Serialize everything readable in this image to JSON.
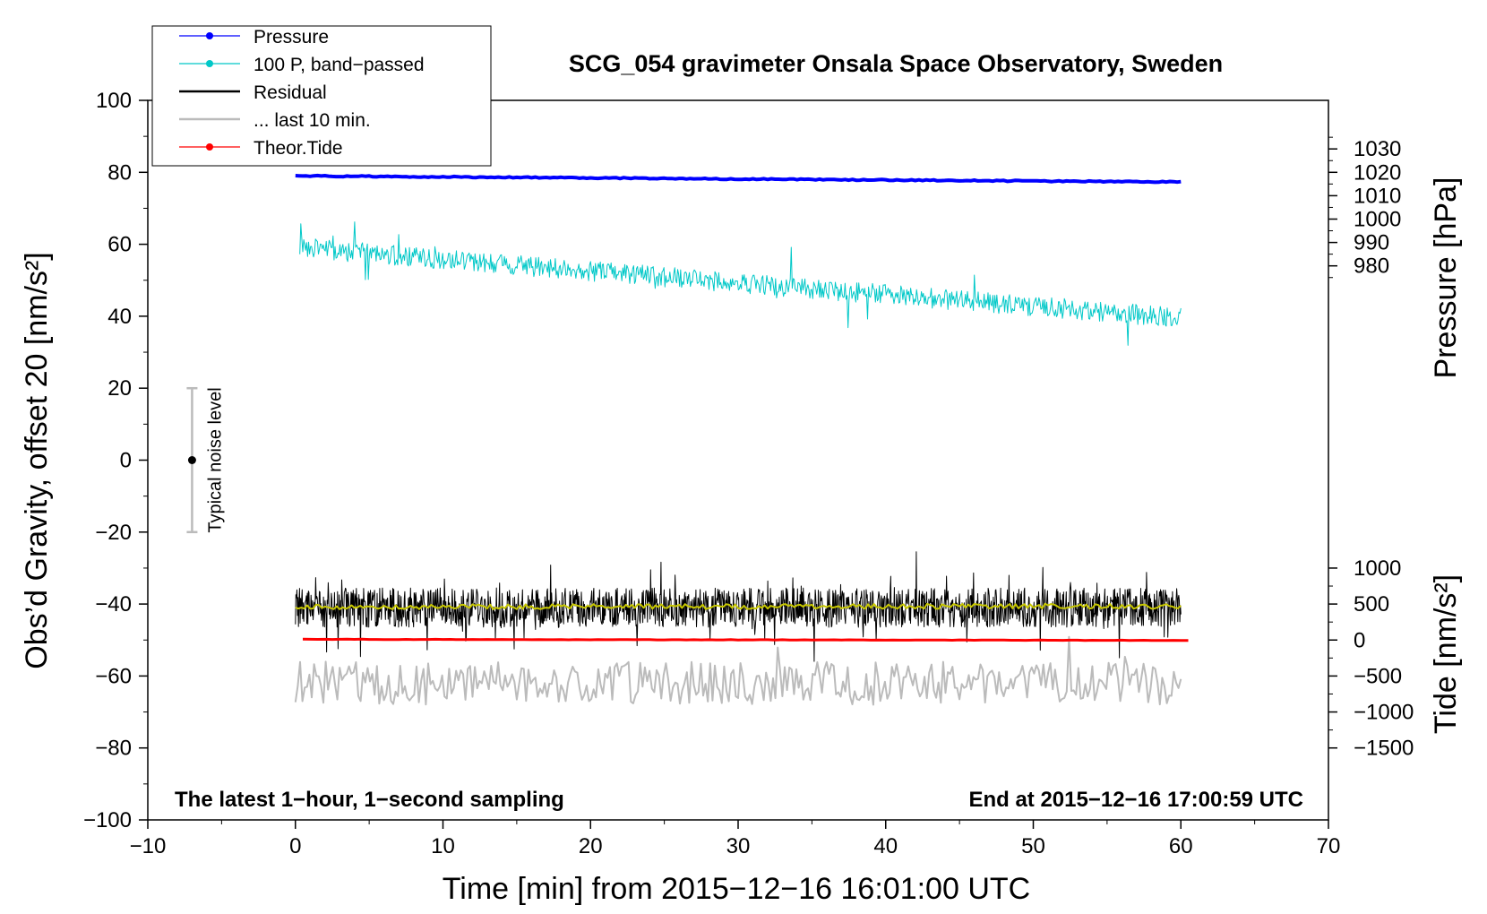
{
  "chart_data": {
    "type": "line",
    "title": "SCG_054 gravimeter Onsala Space Observatory, Sweden",
    "xlabel": "Time [min] from 2015−12−16 16:01:00 UTC",
    "ylabel": "Obs’d Gravity, offset 20 [nm/s²]",
    "right_top_label": "Pressure [hPa]",
    "right_bottom_label": "Tide [nm/s²]",
    "xlim": [
      -10,
      70
    ],
    "ylim": [
      -100,
      100
    ],
    "x_ticks": [
      "−10",
      "0",
      "10",
      "20",
      "30",
      "40",
      "50",
      "60",
      "70"
    ],
    "x_tick_values": [
      -10,
      0,
      10,
      20,
      30,
      40,
      50,
      60,
      70
    ],
    "y_ticks": [
      "100",
      "80",
      "60",
      "40",
      "20",
      "0",
      "−20",
      "−40",
      "−60",
      "−80",
      "−100"
    ],
    "y_tick_values": [
      100,
      80,
      60,
      40,
      20,
      0,
      -20,
      -40,
      -60,
      -80,
      -100
    ],
    "pressure_axis": {
      "ticks": [
        "1030",
        "1020",
        "1010",
        "1000",
        "990",
        "980"
      ],
      "tick_values": [
        1030,
        1020,
        1010,
        1000,
        990,
        980
      ],
      "left_value_at_1020": 80,
      "left_units_per_hPa": 0.65
    },
    "tide_axis": {
      "ticks": [
        "1000",
        "500",
        "0",
        "−500",
        "−1000",
        "−1500"
      ],
      "tick_values": [
        1000,
        500,
        0,
        -500,
        -1000,
        -1500
      ],
      "left_value_at_0": -50,
      "left_units_per_nm": 0.02
    },
    "noise_bar": {
      "label": "Typical noise level",
      "x": -7,
      "center": 0,
      "low": -20,
      "high": 20
    },
    "legend": [
      {
        "label": "Pressure",
        "color": "#0000ff",
        "marker": true
      },
      {
        "label": "100 P, band−passed",
        "color": "#00c8c8",
        "marker": true
      },
      {
        "label": "Residual",
        "color": "#000000",
        "marker": false
      },
      {
        "label": "... last 10 min.",
        "color": "#bbbbbb",
        "marker": false
      },
      {
        "label": "Theor.Tide",
        "color": "#ff0000",
        "marker": true
      }
    ],
    "notes": {
      "left": "The latest 1−hour, 1−second sampling",
      "right": "End at 2015−12−16 17:00:59 UTC"
    },
    "series": [
      {
        "name": "Pressure",
        "color": "#0000ff",
        "kind": "trend",
        "x_start": 0,
        "x_end": 60,
        "y_start": 79,
        "y_end": 77.3,
        "noise": 0.15,
        "points": 240,
        "width": 4
      },
      {
        "name": "100 P, band-passed",
        "color": "#00c8c8",
        "kind": "noisy",
        "x_start": 0.3,
        "x_end": 60,
        "y_start": 59,
        "y_end": 39.5,
        "amp": 2.8,
        "spikes": 0.035,
        "spike_amp": 9,
        "points": 900,
        "width": 1,
        "seed": 11
      },
      {
        "name": "... last 10 min.",
        "color": "#bbbbbb",
        "kind": "noisy",
        "x_start": 0,
        "x_end": 60,
        "y_start": -62,
        "y_end": -62,
        "amp": 6,
        "spikes": 0.05,
        "spike_amp": 8,
        "points": 380,
        "width": 2,
        "seed": 23
      },
      {
        "name": "Residual",
        "color": "#000000",
        "kind": "noisy",
        "x_start": 0,
        "x_end": 60,
        "y_start": -41,
        "y_end": -41,
        "amp": 5.5,
        "spikes": 0.06,
        "spike_amp": 11,
        "points": 1700,
        "width": 1,
        "seed": 37
      },
      {
        "name": "Residual smoothed",
        "color": "#c8c800",
        "kind": "noisy",
        "x_start": 0,
        "x_end": 60,
        "y_start": -40.8,
        "y_end": -40.6,
        "amp": 0.7,
        "spikes": 0,
        "spike_amp": 0,
        "points": 300,
        "width": 2,
        "seed": 41
      },
      {
        "name": "Theor.Tide",
        "color": "#ff0000",
        "kind": "trend",
        "x_start": 0.5,
        "x_end": 60.5,
        "y_start": -49.8,
        "y_end": -50.1,
        "noise": 0.05,
        "points": 120,
        "width": 3
      }
    ]
  }
}
